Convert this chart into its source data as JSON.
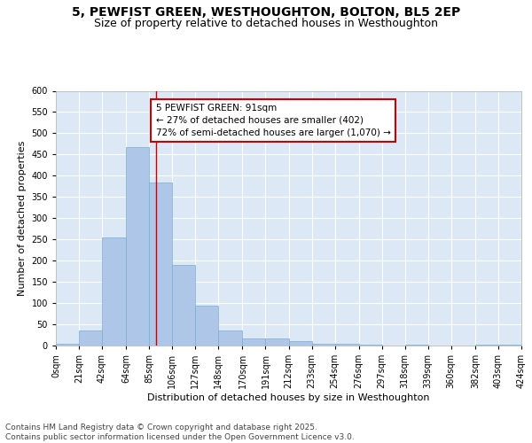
{
  "title": "5, PEWFIST GREEN, WESTHOUGHTON, BOLTON, BL5 2EP",
  "subtitle": "Size of property relative to detached houses in Westhoughton",
  "xlabel": "Distribution of detached houses by size in Westhoughton",
  "ylabel": "Number of detached properties",
  "bins": [
    0,
    21,
    42,
    64,
    85,
    106,
    127,
    148,
    170,
    191,
    212,
    233,
    254,
    276,
    297,
    318,
    339,
    360,
    382,
    403,
    424
  ],
  "values": [
    4,
    36,
    255,
    467,
    383,
    190,
    93,
    36,
    16,
    16,
    11,
    5,
    4,
    2,
    0,
    3,
    0,
    0,
    2,
    3
  ],
  "bar_color": "#aec6e8",
  "bar_edge_color": "#7aaed0",
  "vline_x": 91,
  "vline_color": "#cc0000",
  "annotation_text": "5 PEWFIST GREEN: 91sqm\n← 27% of detached houses are smaller (402)\n72% of semi-detached houses are larger (1,070) →",
  "annotation_box_color": "#ffffff",
  "annotation_box_edge": "#cc0000",
  "ylim": [
    0,
    600
  ],
  "yticks": [
    0,
    50,
    100,
    150,
    200,
    250,
    300,
    350,
    400,
    450,
    500,
    550,
    600
  ],
  "background_color": "#dce8f5",
  "grid_color": "#ffffff",
  "footer": "Contains HM Land Registry data © Crown copyright and database right 2025.\nContains public sector information licensed under the Open Government Licence v3.0.",
  "title_fontsize": 10,
  "subtitle_fontsize": 9,
  "axis_label_fontsize": 8,
  "tick_fontsize": 7,
  "annotation_fontsize": 7.5,
  "footer_fontsize": 6.5
}
